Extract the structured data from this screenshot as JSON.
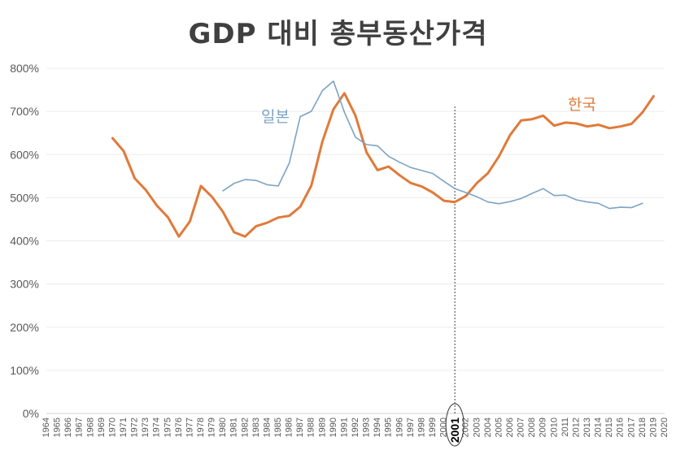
{
  "chart_data": {
    "type": "line",
    "title": "GDP 대비 총부동산가격",
    "xlabel": "",
    "ylabel": "",
    "ylim": [
      0,
      800
    ],
    "y_ticks": [
      "0%",
      "100%",
      "200%",
      "300%",
      "400%",
      "500%",
      "600%",
      "700%",
      "800%"
    ],
    "x_ticks": [
      "1964",
      "1965",
      "1966",
      "1967",
      "1968",
      "1969",
      "1970",
      "1971",
      "1972",
      "1973",
      "1974",
      "1975",
      "1976",
      "1977",
      "1978",
      "1979",
      "1980",
      "1981",
      "1982",
      "1983",
      "1984",
      "1985",
      "1986",
      "1987",
      "1988",
      "1989",
      "1990",
      "1991",
      "1992",
      "1993",
      "1994",
      "1995",
      "1996",
      "1997",
      "1998",
      "1999",
      "2000",
      "2001",
      "2002",
      "2003",
      "2004",
      "2005",
      "2006",
      "2007",
      "2008",
      "2009",
      "2010",
      "2011",
      "2012",
      "2013",
      "2014",
      "2015",
      "2016",
      "2017",
      "2018",
      "2019",
      "2020"
    ],
    "highlight_year": "2001",
    "grid": "horizontal",
    "series": [
      {
        "name": "한국",
        "color": "#E07A3A",
        "x": [
          1970,
          1971,
          1972,
          1973,
          1974,
          1975,
          1976,
          1977,
          1978,
          1979,
          1980,
          1981,
          1982,
          1983,
          1984,
          1985,
          1986,
          1987,
          1988,
          1989,
          1990,
          1991,
          1992,
          1993,
          1994,
          1995,
          1996,
          1997,
          1998,
          1999,
          2000,
          2001,
          2002,
          2003,
          2004,
          2005,
          2006,
          2007,
          2008,
          2009,
          2010,
          2011,
          2012,
          2013,
          2014,
          2015,
          2016,
          2017,
          2018,
          2019
        ],
        "values": [
          638,
          608,
          545,
          518,
          482,
          455,
          410,
          445,
          527,
          502,
          467,
          420,
          410,
          434,
          442,
          454,
          458,
          479,
          528,
          630,
          705,
          742,
          690,
          605,
          564,
          572,
          552,
          534,
          526,
          512,
          493,
          490,
          504,
          534,
          557,
          596,
          645,
          679,
          682,
          690,
          667,
          674,
          672,
          665,
          669,
          661,
          665,
          671,
          698,
          735
        ]
      },
      {
        "name": "일본",
        "color": "#7BA3C4",
        "x": [
          1980,
          1981,
          1982,
          1983,
          1984,
          1985,
          1986,
          1987,
          1988,
          1989,
          1990,
          1991,
          1992,
          1993,
          1994,
          1995,
          1996,
          1997,
          1998,
          1999,
          2000,
          2001,
          2002,
          2003,
          2004,
          2005,
          2006,
          2007,
          2008,
          2009,
          2010,
          2011,
          2012,
          2013,
          2014,
          2015,
          2016,
          2017,
          2018
        ],
        "values": [
          516,
          533,
          542,
          540,
          530,
          527,
          580,
          688,
          700,
          748,
          770,
          698,
          640,
          623,
          620,
          596,
          582,
          570,
          563,
          556,
          538,
          521,
          512,
          502,
          490,
          486,
          491,
          498,
          510,
          521,
          505,
          506,
          495,
          490,
          487,
          475,
          478,
          477,
          487
        ]
      }
    ]
  }
}
